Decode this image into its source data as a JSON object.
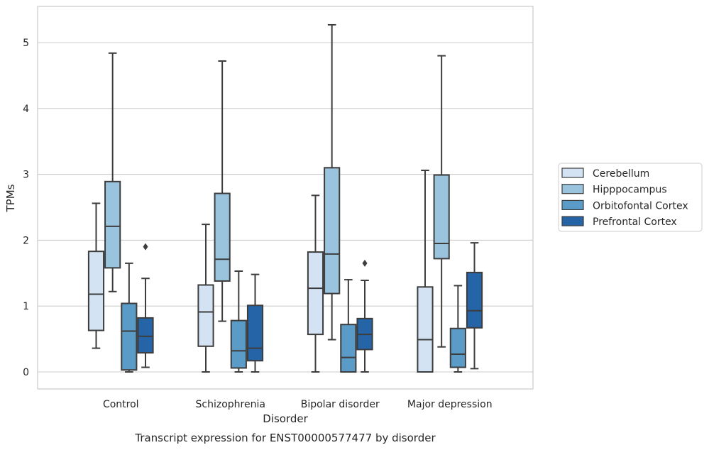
{
  "chart_data": {
    "type": "box",
    "caption": "Transcript expression for ENST00000577477 by disorder",
    "xlabel": "Disorder",
    "ylabel": "TPMs",
    "ylim": [
      -0.25,
      5.5
    ],
    "yticks": [
      0,
      1,
      2,
      3,
      4,
      5
    ],
    "grid": true,
    "legend_position": "right",
    "categories": [
      "Control",
      "Schizophrenia",
      "Bipolar disorder",
      "Major depression"
    ],
    "series": [
      {
        "name": "Cerebellum",
        "color": "#d3e3f3",
        "boxes": [
          {
            "whisker_low": 0.36,
            "q1": 0.63,
            "median": 1.18,
            "q3": 1.83,
            "whisker_high": 2.56,
            "outliers": []
          },
          {
            "whisker_low": 0.0,
            "q1": 0.39,
            "median": 0.91,
            "q3": 1.32,
            "whisker_high": 2.24,
            "outliers": []
          },
          {
            "whisker_low": 0.0,
            "q1": 0.57,
            "median": 1.27,
            "q3": 1.82,
            "whisker_high": 2.68,
            "outliers": []
          },
          {
            "whisker_low": 0.0,
            "q1": 0.0,
            "median": 0.49,
            "q3": 1.29,
            "whisker_high": 3.06,
            "outliers": []
          }
        ]
      },
      {
        "name": "Hipppocampus",
        "color": "#9ac4de",
        "boxes": [
          {
            "whisker_low": 1.22,
            "q1": 1.58,
            "median": 2.21,
            "q3": 2.89,
            "whisker_high": 4.84,
            "outliers": []
          },
          {
            "whisker_low": 0.77,
            "q1": 1.38,
            "median": 1.71,
            "q3": 2.71,
            "whisker_high": 4.72,
            "outliers": []
          },
          {
            "whisker_low": 0.49,
            "q1": 1.19,
            "median": 1.79,
            "q3": 3.1,
            "whisker_high": 5.27,
            "outliers": []
          },
          {
            "whisker_low": 0.38,
            "q1": 1.72,
            "median": 1.95,
            "q3": 2.99,
            "whisker_high": 4.8,
            "outliers": []
          }
        ]
      },
      {
        "name": "Orbitofontal Cortex",
        "color": "#5a9bc8",
        "boxes": [
          {
            "whisker_low": 0.0,
            "q1": 0.03,
            "median": 0.62,
            "q3": 1.04,
            "whisker_high": 1.65,
            "outliers": []
          },
          {
            "whisker_low": 0.0,
            "q1": 0.06,
            "median": 0.32,
            "q3": 0.78,
            "whisker_high": 1.53,
            "outliers": []
          },
          {
            "whisker_low": 0.0,
            "q1": 0.0,
            "median": 0.22,
            "q3": 0.72,
            "whisker_high": 1.4,
            "outliers": []
          },
          {
            "whisker_low": 0.0,
            "q1": 0.07,
            "median": 0.27,
            "q3": 0.66,
            "whisker_high": 1.31,
            "outliers": []
          }
        ]
      },
      {
        "name": "Prefrontal Cortex",
        "color": "#2564a6",
        "boxes": [
          {
            "whisker_low": 0.07,
            "q1": 0.29,
            "median": 0.54,
            "q3": 0.82,
            "whisker_high": 1.42,
            "outliers": [
              1.9
            ]
          },
          {
            "whisker_low": 0.0,
            "q1": 0.17,
            "median": 0.36,
            "q3": 1.01,
            "whisker_high": 1.48,
            "outliers": []
          },
          {
            "whisker_low": 0.0,
            "q1": 0.34,
            "median": 0.57,
            "q3": 0.81,
            "whisker_high": 1.39,
            "outliers": [
              1.65
            ]
          },
          {
            "whisker_low": 0.05,
            "q1": 0.67,
            "median": 0.93,
            "q3": 1.51,
            "whisker_high": 1.96,
            "outliers": []
          }
        ]
      }
    ]
  }
}
